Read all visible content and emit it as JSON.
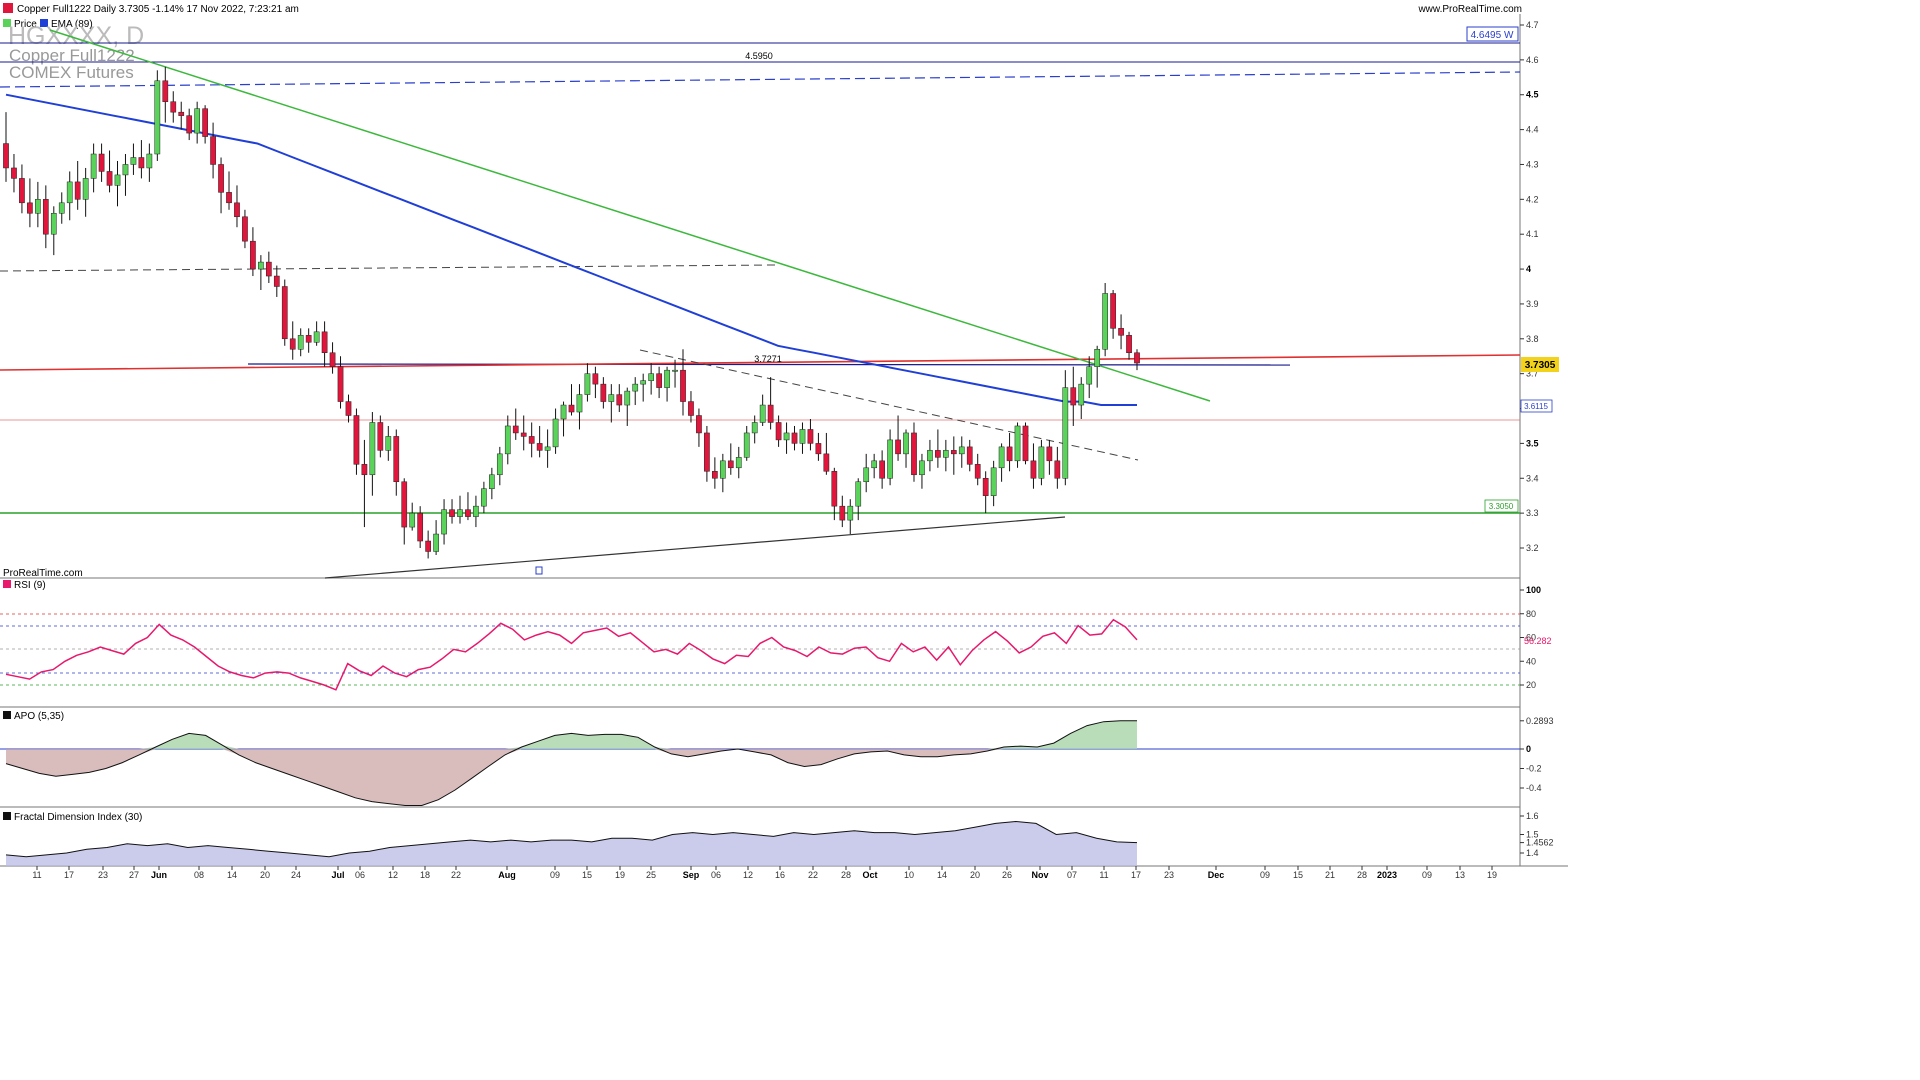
{
  "header": {
    "title": "Copper Full1222 Daily 3.7305 -1.14% 17 Nov 2022, 7:23:21 am",
    "site": "www.ProRealTime.com",
    "watermark": "ProRealTime.com"
  },
  "overlay": {
    "symbol": "HGXXXX, D",
    "name": "Copper Full1222",
    "exchange": "COMEX Futures"
  },
  "legend": {
    "price": "Price",
    "ema": "EMA (89)"
  },
  "colors": {
    "up": "#5ad35a",
    "down": "#e0163c",
    "ema": "#1f3fd6",
    "trend": "#3cb83c",
    "rsi": "#e8186c",
    "resistance": "#e03030",
    "support": "#2aa02a"
  },
  "labels": {
    "level_4595": "4.5950",
    "level_37271": "3.7271",
    "tag_46495": "4.6495 W",
    "tag_price": "3.7305",
    "tag_ema": "3.6115",
    "tag_support": "3.3050"
  },
  "price_axis": {
    "ticks": [
      "4.7",
      "4.6",
      "4.5",
      "4.4",
      "4.3",
      "4.2",
      "4.1",
      "4",
      "3.9",
      "3.8",
      "3.7",
      "3.6",
      "3.5",
      "3.4",
      "3.3",
      "3.2"
    ],
    "bold": [
      "4.5",
      "4",
      "3.5"
    ]
  },
  "date_axis": [
    "11",
    "17",
    "23",
    "27",
    "Jun",
    "08",
    "14",
    "20",
    "24",
    "Jul",
    "06",
    "12",
    "18",
    "22",
    "Aug",
    "09",
    "15",
    "19",
    "25",
    "Sep",
    "06",
    "12",
    "16",
    "22",
    "28",
    "Oct",
    "10",
    "14",
    "20",
    "26",
    "Nov",
    "07",
    "11",
    "17",
    "23",
    "Dec",
    "09",
    "15",
    "21",
    "28",
    "2023",
    "09",
    "13",
    "19"
  ],
  "date_axis_bold": [
    "Jun",
    "Jul",
    "Aug",
    "Sep",
    "Oct",
    "Nov",
    "Dec",
    "2023"
  ],
  "rsi": {
    "title": "RSI (9)",
    "ticks": [
      "100",
      "80",
      "60",
      "40",
      "20"
    ],
    "value": "56.282"
  },
  "apo": {
    "title": "APO (5,35)",
    "ticks": [
      "0.2893",
      "0",
      "-0.2",
      "-0.4"
    ]
  },
  "fdi": {
    "title": "Fractal Dimension Index (30)",
    "ticks": [
      "1.6",
      "1.5",
      "1.4562",
      "1.4"
    ]
  },
  "chart_data": {
    "type": "candlestick",
    "instrument": "Copper Full1222 Daily",
    "last": 3.7305,
    "ylim": [
      3.12,
      4.72
    ],
    "candles": [
      [
        4.36,
        4.45,
        4.25,
        4.29
      ],
      [
        4.29,
        4.33,
        4.22,
        4.26
      ],
      [
        4.26,
        4.3,
        4.16,
        4.19
      ],
      [
        4.19,
        4.26,
        4.12,
        4.16
      ],
      [
        4.16,
        4.25,
        4.12,
        4.2
      ],
      [
        4.2,
        4.24,
        4.06,
        4.1
      ],
      [
        4.1,
        4.18,
        4.04,
        4.16
      ],
      [
        4.16,
        4.22,
        4.13,
        4.19
      ],
      [
        4.19,
        4.28,
        4.14,
        4.25
      ],
      [
        4.25,
        4.31,
        4.17,
        4.2
      ],
      [
        4.2,
        4.29,
        4.15,
        4.26
      ],
      [
        4.26,
        4.36,
        4.22,
        4.33
      ],
      [
        4.33,
        4.36,
        4.25,
        4.28
      ],
      [
        4.28,
        4.34,
        4.22,
        4.24
      ],
      [
        4.24,
        4.31,
        4.18,
        4.27
      ],
      [
        4.27,
        4.33,
        4.21,
        4.3
      ],
      [
        4.3,
        4.36,
        4.27,
        4.32
      ],
      [
        4.32,
        4.37,
        4.26,
        4.29
      ],
      [
        4.29,
        4.36,
        4.25,
        4.33
      ],
      [
        4.33,
        4.57,
        4.31,
        4.54
      ],
      [
        4.54,
        4.58,
        4.42,
        4.48
      ],
      [
        4.48,
        4.51,
        4.42,
        4.45
      ],
      [
        4.45,
        4.48,
        4.4,
        4.44
      ],
      [
        4.44,
        4.46,
        4.37,
        4.39
      ],
      [
        4.39,
        4.48,
        4.36,
        4.46
      ],
      [
        4.46,
        4.47,
        4.36,
        4.38
      ],
      [
        4.38,
        4.42,
        4.26,
        4.3
      ],
      [
        4.3,
        4.32,
        4.16,
        4.22
      ],
      [
        4.22,
        4.28,
        4.17,
        4.19
      ],
      [
        4.19,
        4.24,
        4.12,
        4.15
      ],
      [
        4.15,
        4.17,
        4.06,
        4.08
      ],
      [
        4.08,
        4.12,
        3.98,
        4.0
      ],
      [
        4.0,
        4.04,
        3.94,
        4.02
      ],
      [
        4.02,
        4.05,
        3.96,
        3.98
      ],
      [
        3.98,
        4.01,
        3.92,
        3.95
      ],
      [
        3.95,
        3.97,
        3.78,
        3.8
      ],
      [
        3.8,
        3.85,
        3.74,
        3.77
      ],
      [
        3.77,
        3.83,
        3.75,
        3.81
      ],
      [
        3.81,
        3.83,
        3.76,
        3.79
      ],
      [
        3.79,
        3.85,
        3.78,
        3.82
      ],
      [
        3.82,
        3.85,
        3.72,
        3.76
      ],
      [
        3.76,
        3.79,
        3.7,
        3.72
      ],
      [
        3.72,
        3.75,
        3.6,
        3.62
      ],
      [
        3.62,
        3.64,
        3.56,
        3.58
      ],
      [
        3.58,
        3.6,
        3.41,
        3.44
      ],
      [
        3.44,
        3.51,
        3.26,
        3.41
      ],
      [
        3.41,
        3.59,
        3.35,
        3.56
      ],
      [
        3.56,
        3.58,
        3.46,
        3.48
      ],
      [
        3.48,
        3.55,
        3.45,
        3.52
      ],
      [
        3.52,
        3.54,
        3.35,
        3.39
      ],
      [
        3.39,
        3.4,
        3.21,
        3.26
      ],
      [
        3.26,
        3.33,
        3.25,
        3.3
      ],
      [
        3.3,
        3.32,
        3.2,
        3.22
      ],
      [
        3.22,
        3.25,
        3.17,
        3.19
      ],
      [
        3.19,
        3.28,
        3.18,
        3.24
      ],
      [
        3.24,
        3.34,
        3.21,
        3.31
      ],
      [
        3.31,
        3.34,
        3.27,
        3.29
      ],
      [
        3.29,
        3.35,
        3.27,
        3.31
      ],
      [
        3.31,
        3.36,
        3.28,
        3.29
      ],
      [
        3.29,
        3.35,
        3.26,
        3.32
      ],
      [
        3.32,
        3.39,
        3.3,
        3.37
      ],
      [
        3.37,
        3.43,
        3.34,
        3.41
      ],
      [
        3.41,
        3.49,
        3.38,
        3.47
      ],
      [
        3.47,
        3.58,
        3.44,
        3.55
      ],
      [
        3.55,
        3.6,
        3.51,
        3.53
      ],
      [
        3.53,
        3.58,
        3.48,
        3.52
      ],
      [
        3.52,
        3.56,
        3.46,
        3.5
      ],
      [
        3.5,
        3.55,
        3.46,
        3.48
      ],
      [
        3.48,
        3.54,
        3.43,
        3.49
      ],
      [
        3.49,
        3.6,
        3.47,
        3.57
      ],
      [
        3.57,
        3.62,
        3.52,
        3.61
      ],
      [
        3.61,
        3.67,
        3.58,
        3.59
      ],
      [
        3.59,
        3.67,
        3.54,
        3.64
      ],
      [
        3.64,
        3.73,
        3.62,
        3.7
      ],
      [
        3.7,
        3.72,
        3.63,
        3.67
      ],
      [
        3.67,
        3.69,
        3.6,
        3.62
      ],
      [
        3.62,
        3.67,
        3.56,
        3.64
      ],
      [
        3.64,
        3.67,
        3.59,
        3.61
      ],
      [
        3.61,
        3.66,
        3.55,
        3.65
      ],
      [
        3.65,
        3.69,
        3.61,
        3.67
      ],
      [
        3.67,
        3.7,
        3.62,
        3.68
      ],
      [
        3.68,
        3.73,
        3.64,
        3.7
      ],
      [
        3.7,
        3.72,
        3.63,
        3.66
      ],
      [
        3.66,
        3.72,
        3.62,
        3.71
      ],
      [
        3.71,
        3.74,
        3.66,
        3.71
      ],
      [
        3.71,
        3.77,
        3.58,
        3.62
      ],
      [
        3.62,
        3.65,
        3.56,
        3.58
      ],
      [
        3.58,
        3.6,
        3.49,
        3.53
      ],
      [
        3.53,
        3.55,
        3.39,
        3.42
      ],
      [
        3.42,
        3.46,
        3.37,
        3.4
      ],
      [
        3.4,
        3.47,
        3.36,
        3.45
      ],
      [
        3.45,
        3.5,
        3.41,
        3.43
      ],
      [
        3.43,
        3.49,
        3.4,
        3.46
      ],
      [
        3.46,
        3.55,
        3.45,
        3.53
      ],
      [
        3.53,
        3.58,
        3.5,
        3.56
      ],
      [
        3.56,
        3.64,
        3.55,
        3.61
      ],
      [
        3.61,
        3.69,
        3.54,
        3.56
      ],
      [
        3.56,
        3.58,
        3.49,
        3.51
      ],
      [
        3.51,
        3.56,
        3.47,
        3.53
      ],
      [
        3.53,
        3.55,
        3.48,
        3.5
      ],
      [
        3.5,
        3.56,
        3.47,
        3.54
      ],
      [
        3.54,
        3.57,
        3.48,
        3.5
      ],
      [
        3.5,
        3.53,
        3.45,
        3.47
      ],
      [
        3.47,
        3.53,
        3.41,
        3.42
      ],
      [
        3.42,
        3.43,
        3.28,
        3.32
      ],
      [
        3.32,
        3.35,
        3.26,
        3.28
      ],
      [
        3.28,
        3.34,
        3.24,
        3.32
      ],
      [
        3.32,
        3.4,
        3.28,
        3.39
      ],
      [
        3.39,
        3.47,
        3.36,
        3.43
      ],
      [
        3.43,
        3.47,
        3.4,
        3.45
      ],
      [
        3.45,
        3.48,
        3.37,
        3.4
      ],
      [
        3.4,
        3.54,
        3.38,
        3.51
      ],
      [
        3.51,
        3.58,
        3.45,
        3.47
      ],
      [
        3.47,
        3.54,
        3.43,
        3.53
      ],
      [
        3.53,
        3.56,
        3.39,
        3.41
      ],
      [
        3.41,
        3.47,
        3.37,
        3.45
      ],
      [
        3.45,
        3.51,
        3.42,
        3.48
      ],
      [
        3.48,
        3.54,
        3.43,
        3.46
      ],
      [
        3.46,
        3.51,
        3.42,
        3.48
      ],
      [
        3.48,
        3.52,
        3.41,
        3.47
      ],
      [
        3.47,
        3.52,
        3.43,
        3.49
      ],
      [
        3.49,
        3.51,
        3.42,
        3.44
      ],
      [
        3.44,
        3.47,
        3.38,
        3.4
      ],
      [
        3.4,
        3.42,
        3.3,
        3.35
      ],
      [
        3.35,
        3.45,
        3.32,
        3.43
      ],
      [
        3.43,
        3.5,
        3.39,
        3.49
      ],
      [
        3.49,
        3.53,
        3.42,
        3.45
      ],
      [
        3.45,
        3.56,
        3.43,
        3.55
      ],
      [
        3.55,
        3.56,
        3.44,
        3.45
      ],
      [
        3.45,
        3.5,
        3.37,
        3.4
      ],
      [
        3.4,
        3.51,
        3.38,
        3.49
      ],
      [
        3.49,
        3.51,
        3.41,
        3.45
      ],
      [
        3.45,
        3.49,
        3.37,
        3.4
      ],
      [
        3.4,
        3.71,
        3.38,
        3.66
      ],
      [
        3.66,
        3.72,
        3.55,
        3.61
      ],
      [
        3.61,
        3.69,
        3.57,
        3.67
      ],
      [
        3.67,
        3.75,
        3.63,
        3.72
      ],
      [
        3.72,
        3.78,
        3.66,
        3.77
      ],
      [
        3.77,
        3.96,
        3.75,
        3.93
      ],
      [
        3.93,
        3.94,
        3.8,
        3.83
      ],
      [
        3.83,
        3.87,
        3.77,
        3.81
      ],
      [
        3.81,
        3.82,
        3.74,
        3.76
      ],
      [
        3.76,
        3.77,
        3.71,
        3.7305
      ]
    ],
    "ema89": [
      4.5,
      4.49,
      4.48,
      4.47,
      4.46,
      4.45,
      4.44,
      4.43,
      4.42,
      4.41,
      4.4,
      4.39,
      4.38,
      4.37,
      4.36,
      4.34,
      4.32,
      4.3,
      4.28,
      4.26,
      4.24,
      4.22,
      4.2,
      4.18,
      4.16,
      4.14,
      4.12,
      4.1,
      4.08,
      4.06,
      4.04,
      4.02,
      4.0,
      3.98,
      3.96,
      3.94,
      3.92,
      3.9,
      3.88,
      3.86,
      3.84,
      3.82,
      3.8,
      3.78,
      3.77,
      3.76,
      3.75,
      3.74,
      3.73,
      3.72,
      3.71,
      3.7,
      3.69,
      3.68,
      3.67,
      3.66,
      3.65,
      3.64,
      3.63,
      3.62,
      3.62,
      3.61,
      3.61,
      3.61
    ],
    "rsi9": [
      29,
      27,
      25,
      31,
      33,
      40,
      45,
      48,
      52,
      49,
      46,
      55,
      60,
      71,
      62,
      58,
      52,
      44,
      36,
      31,
      28,
      26,
      30,
      31,
      30,
      26,
      23,
      20,
      16,
      38,
      32,
      28,
      36,
      30,
      27,
      33,
      35,
      42,
      50,
      48,
      55,
      63,
      72,
      67,
      58,
      62,
      65,
      62,
      55,
      64,
      66,
      68,
      61,
      64,
      56,
      48,
      50,
      46,
      55,
      49,
      42,
      38,
      45,
      44,
      55,
      60,
      52,
      49,
      44,
      52,
      47,
      46,
      51,
      52,
      43,
      40,
      55,
      48,
      52,
      41,
      52,
      37,
      49,
      58,
      65,
      57,
      47,
      52,
      61,
      64,
      55,
      70,
      62,
      63,
      75,
      69,
      58
    ],
    "apo535": [
      -0.15,
      -0.2,
      -0.25,
      -0.28,
      -0.26,
      -0.24,
      -0.2,
      -0.14,
      -0.06,
      0.02,
      0.1,
      0.16,
      0.14,
      0.04,
      -0.06,
      -0.14,
      -0.2,
      -0.26,
      -0.32,
      -0.38,
      -0.44,
      -0.5,
      -0.54,
      -0.56,
      -0.58,
      -0.58,
      -0.52,
      -0.42,
      -0.3,
      -0.18,
      -0.06,
      0.02,
      0.08,
      0.14,
      0.16,
      0.14,
      0.15,
      0.15,
      0.12,
      0.02,
      -0.05,
      -0.08,
      -0.05,
      -0.02,
      0.0,
      -0.03,
      -0.06,
      -0.14,
      -0.18,
      -0.16,
      -0.1,
      -0.05,
      -0.03,
      -0.02,
      -0.06,
      -0.08,
      -0.08,
      -0.06,
      -0.05,
      -0.02,
      0.02,
      0.03,
      0.02,
      0.06,
      0.16,
      0.24,
      0.28,
      0.29,
      0.2893
    ],
    "fdi30": [
      1.39,
      1.38,
      1.39,
      1.4,
      1.42,
      1.43,
      1.45,
      1.44,
      1.45,
      1.43,
      1.44,
      1.43,
      1.42,
      1.41,
      1.4,
      1.39,
      1.38,
      1.4,
      1.41,
      1.43,
      1.44,
      1.45,
      1.46,
      1.47,
      1.46,
      1.47,
      1.46,
      1.47,
      1.47,
      1.46,
      1.48,
      1.48,
      1.47,
      1.5,
      1.51,
      1.5,
      1.51,
      1.5,
      1.49,
      1.51,
      1.5,
      1.51,
      1.52,
      1.51,
      1.51,
      1.5,
      1.51,
      1.52,
      1.54,
      1.56,
      1.57,
      1.56,
      1.5,
      1.51,
      1.48,
      1.46,
      1.4562
    ]
  }
}
